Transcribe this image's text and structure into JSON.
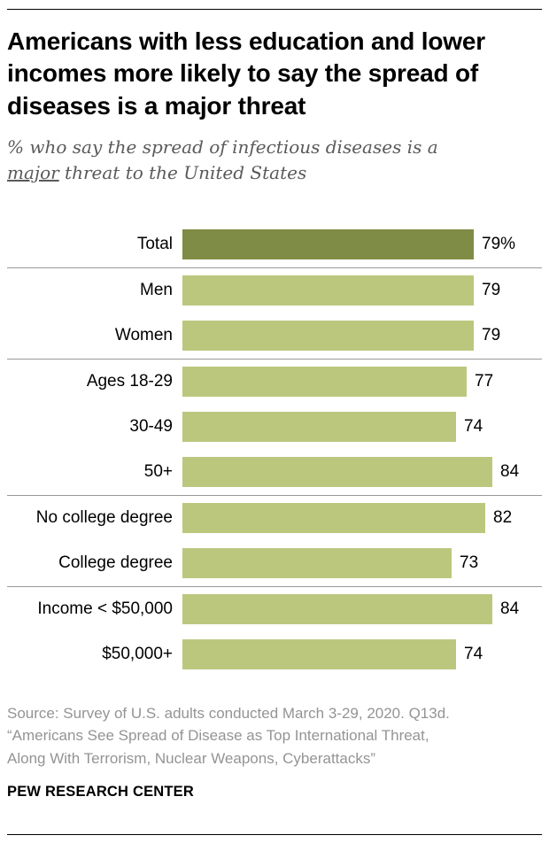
{
  "header": {
    "title": "Americans with less education and lower incomes more likely to say the spread of diseases is a major threat",
    "subtitle_prefix": "% who say the spread of infectious diseases is a ",
    "subtitle_underlined": "major",
    "subtitle_suffix": " threat to the United States"
  },
  "chart_data": {
    "type": "bar",
    "orientation": "horizontal",
    "title": "Americans with less education and lower incomes more likely to say the spread of diseases is a major threat",
    "categories": [
      "Total",
      "Men",
      "Women",
      "Ages 18-29",
      "30-49",
      "50+",
      "No college degree",
      "College degree",
      "Income < $50,000",
      "$50,000+"
    ],
    "values": [
      79,
      79,
      79,
      77,
      74,
      84,
      82,
      73,
      84,
      74
    ],
    "value_labels": [
      "79%",
      "79",
      "79",
      "77",
      "74",
      "84",
      "82",
      "73",
      "84",
      "74"
    ],
    "group_breaks_after_index": [
      0,
      2,
      5,
      7
    ],
    "xlim": [
      0,
      100
    ],
    "grid": false,
    "legend": false,
    "colors": {
      "total_bar": "#7f8c45",
      "bar": "#bcc77e"
    }
  },
  "footer": {
    "source_lines": [
      "Source: Survey of U.S. adults conducted March 3-29, 2020. Q13d.",
      "“Americans See Spread of Disease as Top International Threat,",
      "Along With Terrorism, Nuclear Weapons, Cyberattacks”"
    ],
    "brand": "PEW RESEARCH CENTER"
  }
}
